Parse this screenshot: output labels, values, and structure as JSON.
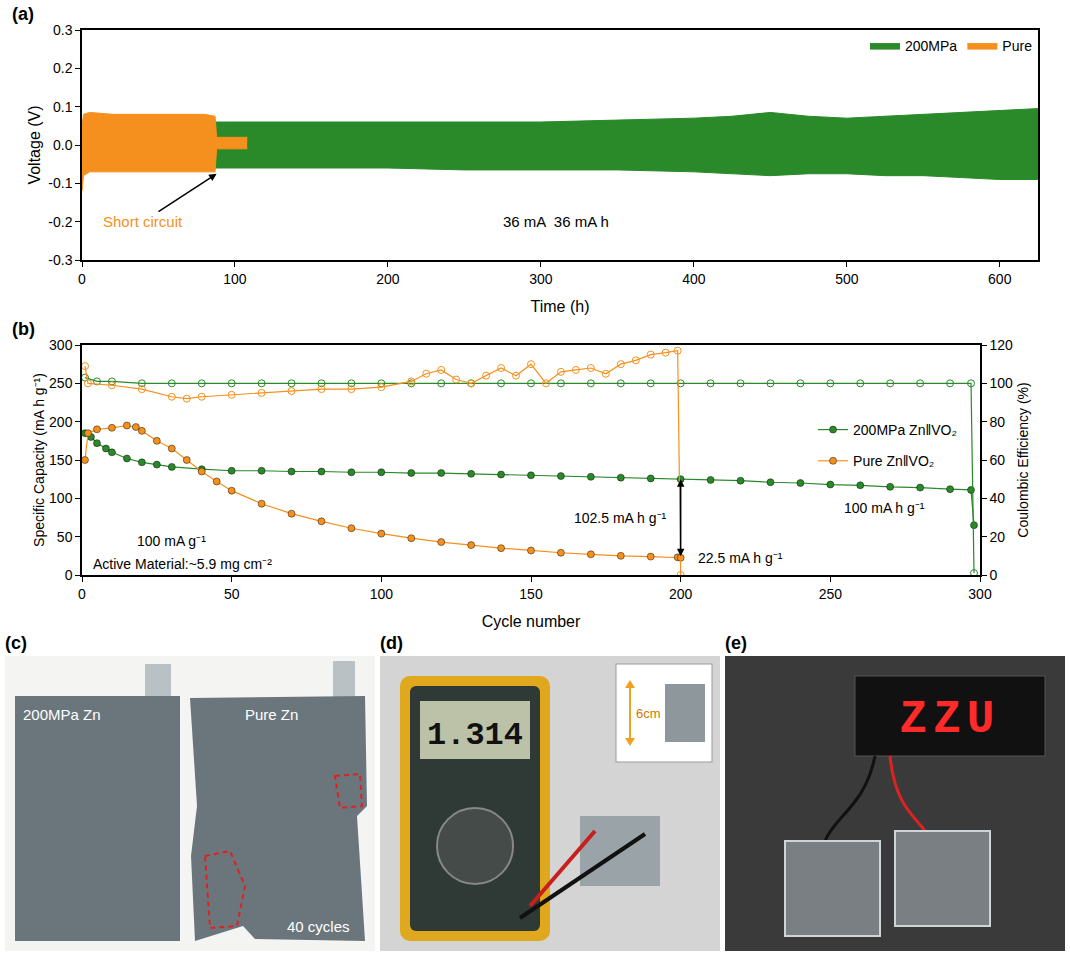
{
  "chart_data": [
    {
      "type": "band",
      "panel": "(a)",
      "x_label": "Time (h)",
      "y_label": "Voltage (V)",
      "xlim": [
        0,
        625
      ],
      "xticks": [
        0,
        100,
        200,
        300,
        400,
        500,
        600
      ],
      "ylim": [
        -0.3,
        0.3
      ],
      "yticks": [
        -0.3,
        -0.2,
        -0.1,
        {
          "value": 0,
          "label": "0.0"
        },
        0.1,
        0.2,
        0.3
      ],
      "grid": false,
      "legend": "top right",
      "annotations": [
        {
          "text": "Short circuit",
          "color": "#f5901e"
        },
        {
          "text": "36 mA  36 mA h"
        }
      ],
      "series": [
        {
          "name": "200MPa",
          "color": "#2a8a2a",
          "x": [
            0,
            50,
            100,
            150,
            200,
            250,
            300,
            350,
            400,
            425,
            450,
            475,
            500,
            525,
            550,
            575,
            600,
            625
          ],
          "upper": [
            0.06,
            0.06,
            0.06,
            0.06,
            0.06,
            0.06,
            0.06,
            0.065,
            0.07,
            0.075,
            0.085,
            0.075,
            0.07,
            0.075,
            0.08,
            0.085,
            0.09,
            0.095
          ],
          "lower": [
            -0.06,
            -0.06,
            -0.06,
            -0.06,
            -0.06,
            -0.065,
            -0.065,
            -0.065,
            -0.07,
            -0.075,
            -0.08,
            -0.075,
            -0.075,
            -0.08,
            -0.08,
            -0.085,
            -0.09,
            -0.09
          ]
        },
        {
          "name": "Pure",
          "color": "#f5901e",
          "x": [
            0,
            1,
            5,
            20,
            40,
            60,
            80,
            87,
            88,
            100,
            108
          ],
          "upper": [
            0.05,
            0.08,
            0.085,
            0.08,
            0.08,
            0.08,
            0.08,
            0.075,
            0.02,
            0.02,
            0.02
          ],
          "lower": [
            -0.12,
            -0.08,
            -0.07,
            -0.07,
            -0.07,
            -0.07,
            -0.07,
            -0.07,
            -0.01,
            -0.01,
            -0.01
          ]
        }
      ]
    },
    {
      "type": "line",
      "panel": "(b)",
      "x_label": "Cycle number",
      "y_label": "Specific Capacity (mA h g⁻¹)",
      "y2_label": "Coulombic Efficiency (%)",
      "xlim": [
        0,
        300
      ],
      "xticks": [
        0,
        50,
        100,
        150,
        200,
        250,
        300
      ],
      "ylim": [
        0,
        300
      ],
      "yticks": [
        0,
        50,
        100,
        150,
        200,
        250,
        300
      ],
      "y2lim": [
        0,
        120
      ],
      "y2ticks": [
        0,
        20,
        40,
        60,
        80,
        100,
        120
      ],
      "grid": false,
      "legend": "right",
      "annotations": [
        {
          "text": "100 mA g⁻¹"
        },
        {
          "text": "Active Material:~5.9 mg cm⁻²"
        },
        {
          "text": "102.5 mA h g⁻¹"
        },
        {
          "text": "22.5 mA h g⁻¹"
        },
        {
          "text": "100 mA h g⁻¹"
        }
      ],
      "series": [
        {
          "name": "200MPa Zn‖VO₂",
          "color": "#2a8a2a",
          "marker": "circle",
          "x": [
            1,
            3,
            5,
            8,
            10,
            15,
            20,
            25,
            30,
            40,
            50,
            60,
            70,
            80,
            90,
            100,
            110,
            120,
            130,
            140,
            150,
            160,
            170,
            180,
            190,
            200,
            210,
            220,
            230,
            240,
            250,
            260,
            270,
            280,
            290,
            297,
            298
          ],
          "values": [
            185,
            180,
            172,
            165,
            160,
            152,
            147,
            144,
            141,
            138,
            136,
            136,
            135,
            135,
            134,
            134,
            133,
            133,
            132,
            131,
            130,
            129,
            128,
            127,
            126,
            125,
            124,
            123,
            121,
            120,
            118,
            117,
            115,
            114,
            112,
            111,
            65
          ]
        },
        {
          "name": "Pure Zn‖VO₂",
          "color": "#f5901e",
          "marker": "circle",
          "x": [
            1,
            2,
            5,
            10,
            15,
            18,
            20,
            25,
            30,
            35,
            40,
            45,
            50,
            60,
            70,
            80,
            90,
            100,
            110,
            120,
            130,
            140,
            150,
            160,
            170,
            180,
            190,
            199,
            200
          ],
          "values": [
            150,
            185,
            190,
            192,
            195,
            193,
            188,
            175,
            165,
            150,
            135,
            122,
            110,
            93,
            80,
            70,
            61,
            54,
            48,
            43,
            39,
            35,
            32,
            29,
            27,
            25,
            24,
            23,
            22.5
          ]
        },
        {
          "name": "200MPa Zn‖VO₂",
          "color": "#2a8a2a",
          "marker": "circle-open",
          "axis": "y2",
          "x": [
            1,
            5,
            10,
            20,
            30,
            40,
            50,
            60,
            70,
            80,
            90,
            100,
            110,
            120,
            130,
            140,
            150,
            160,
            170,
            180,
            190,
            200,
            210,
            220,
            230,
            240,
            250,
            260,
            270,
            280,
            290,
            297,
            298
          ],
          "values": [
            103,
            101,
            101,
            100,
            100,
            100,
            100,
            100,
            100,
            100,
            100,
            100,
            100,
            100,
            100,
            100,
            100,
            100,
            100,
            100,
            100,
            100,
            100,
            100,
            100,
            100,
            100,
            100,
            100,
            100,
            100,
            100,
            1
          ]
        },
        {
          "name": "Pure Zn‖VO₂",
          "color": "#f5901e",
          "marker": "circle-open",
          "axis": "y2",
          "x": [
            1,
            2,
            10,
            20,
            30,
            35,
            40,
            50,
            60,
            70,
            80,
            90,
            100,
            110,
            115,
            120,
            125,
            130,
            135,
            140,
            145,
            150,
            155,
            160,
            165,
            170,
            175,
            180,
            185,
            190,
            195,
            199,
            200
          ],
          "values": [
            109,
            100,
            99,
            97,
            93,
            92,
            93,
            94,
            95,
            96,
            97,
            97,
            98,
            101,
            105,
            107,
            102,
            100,
            104,
            108,
            104,
            110,
            100,
            106,
            107,
            108,
            105,
            110,
            112,
            115,
            116,
            117,
            0
          ]
        }
      ]
    }
  ],
  "photos": [
    {
      "panel": "(c)",
      "texts": [
        "200MPa Zn",
        "Pure Zn",
        "40 cycles"
      ]
    },
    {
      "panel": "(d)",
      "display": "1.314",
      "texts": [
        "6cm"
      ]
    },
    {
      "panel": "(e)",
      "display": "ZZU"
    }
  ]
}
